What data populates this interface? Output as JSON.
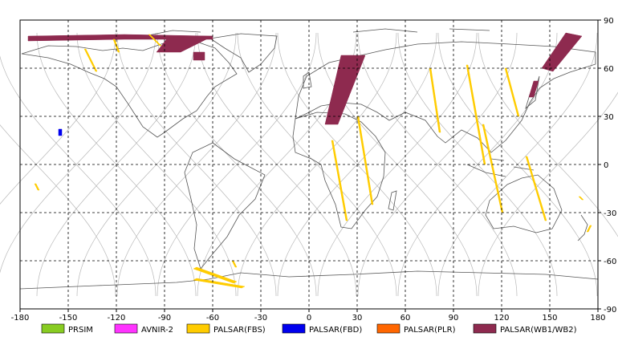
{
  "map": {
    "type": "coverage-map",
    "projection": "equirectangular",
    "xlim": [
      -180,
      180
    ],
    "ylim": [
      -90,
      90
    ],
    "grid": true,
    "x_ticks": [
      {
        "value": -180,
        "label": "-180"
      },
      {
        "value": -150,
        "label": "-150"
      },
      {
        "value": -120,
        "label": "-120"
      },
      {
        "value": -90,
        "label": "-90"
      },
      {
        "value": -60,
        "label": "-60"
      },
      {
        "value": -30,
        "label": "-30"
      },
      {
        "value": 0,
        "label": "0"
      },
      {
        "value": 30,
        "label": "30"
      },
      {
        "value": 60,
        "label": "60"
      },
      {
        "value": 90,
        "label": "90"
      },
      {
        "value": 120,
        "label": "120"
      },
      {
        "value": 150,
        "label": "150"
      },
      {
        "value": 180,
        "label": "180"
      }
    ],
    "y_ticks": [
      {
        "value": 90,
        "label": "90"
      },
      {
        "value": 60,
        "label": "60"
      },
      {
        "value": 30,
        "label": "30"
      },
      {
        "value": 0,
        "label": "0"
      },
      {
        "value": -30,
        "label": "-30"
      },
      {
        "value": -60,
        "label": "-60"
      },
      {
        "value": -90,
        "label": "-90"
      }
    ],
    "orbit_phases_deg": [
      -170,
      -145,
      -120,
      -95,
      -70,
      -45,
      -20,
      5,
      30,
      55,
      80,
      105,
      130,
      155
    ],
    "colors": {
      "grid": "#000000",
      "coast": "#555555",
      "orbit": "#b8b8b8"
    }
  },
  "legend": [
    {
      "label": "PRSIM",
      "color": "#88cc22"
    },
    {
      "label": "AVNIR-2",
      "color": "#ff33ff"
    },
    {
      "label": "PALSAR(FBS)",
      "color": "#ffcc00"
    },
    {
      "label": "PALSAR(FBD)",
      "color": "#0000ee"
    },
    {
      "label": "PALSAR(PLR)",
      "color": "#ff6600"
    },
    {
      "label": "PALSAR(WB1/WB2)",
      "color": "#8e2a4f"
    }
  ],
  "swaths": [
    {
      "mode": "PALSAR(WB1/WB2)",
      "points": [
        [
          -175,
          80
        ],
        [
          -115,
          81
        ],
        [
          -60,
          80
        ],
        [
          -60,
          78
        ],
        [
          -115,
          78
        ],
        [
          -175,
          77
        ]
      ]
    },
    {
      "mode": "PALSAR(WB1/WB2)",
      "points": [
        [
          -88,
          79
        ],
        [
          -60,
          80
        ],
        [
          -80,
          70
        ],
        [
          -95,
          70
        ]
      ]
    },
    {
      "mode": "PALSAR(WB1/WB2)",
      "points": [
        [
          -72,
          70
        ],
        [
          -65,
          70
        ],
        [
          -65,
          65
        ],
        [
          -72,
          65
        ]
      ]
    },
    {
      "mode": "PALSAR(WB1/WB2)",
      "points": [
        [
          35,
          68
        ],
        [
          20,
          68
        ],
        [
          10,
          25
        ],
        [
          18,
          25
        ]
      ]
    },
    {
      "mode": "PALSAR(WB1/WB2)",
      "points": [
        [
          170,
          80
        ],
        [
          160,
          82
        ],
        [
          145,
          60
        ],
        [
          152,
          58
        ]
      ]
    },
    {
      "mode": "PALSAR(WB1/WB2)",
      "points": [
        [
          140,
          52
        ],
        [
          143,
          52
        ],
        [
          140,
          42
        ],
        [
          137,
          42
        ]
      ]
    },
    {
      "mode": "PALSAR(FBS)",
      "points": [
        [
          -140,
          72
        ],
        [
          -139,
          72
        ],
        [
          -132,
          58
        ],
        [
          -133,
          58
        ]
      ]
    },
    {
      "mode": "PALSAR(FBS)",
      "points": [
        [
          -122,
          78
        ],
        [
          -121,
          78
        ],
        [
          -118,
          70
        ],
        [
          -119,
          70
        ]
      ]
    },
    {
      "mode": "PALSAR(FBS)",
      "points": [
        [
          -100,
          81
        ],
        [
          -99,
          81
        ],
        [
          -92,
          74
        ],
        [
          -93,
          74
        ]
      ]
    },
    {
      "mode": "PALSAR(FBS)",
      "points": [
        [
          14,
          15
        ],
        [
          15,
          15
        ],
        [
          24,
          -35
        ],
        [
          23,
          -35
        ]
      ]
    },
    {
      "mode": "PALSAR(FBS)",
      "points": [
        [
          30,
          30
        ],
        [
          31,
          30
        ],
        [
          40,
          -25
        ],
        [
          39,
          -25
        ]
      ]
    },
    {
      "mode": "PALSAR(FBS)",
      "points": [
        [
          75,
          60
        ],
        [
          76,
          60
        ],
        [
          82,
          20
        ],
        [
          81,
          20
        ]
      ]
    },
    {
      "mode": "PALSAR(FBS)",
      "points": [
        [
          98,
          62
        ],
        [
          99,
          62
        ],
        [
          110,
          0
        ],
        [
          109,
          0
        ]
      ]
    },
    {
      "mode": "PALSAR(FBS)",
      "points": [
        [
          122,
          60
        ],
        [
          123,
          60
        ],
        [
          131,
          30
        ],
        [
          130,
          30
        ]
      ]
    },
    {
      "mode": "PALSAR(FBS)",
      "points": [
        [
          108,
          25
        ],
        [
          109,
          25
        ],
        [
          121,
          -30
        ],
        [
          120,
          -30
        ]
      ]
    },
    {
      "mode": "PALSAR(FBS)",
      "points": [
        [
          135,
          5
        ],
        [
          136,
          5
        ],
        [
          148,
          -35
        ],
        [
          147,
          -35
        ]
      ]
    },
    {
      "mode": "PALSAR(FBS)",
      "points": [
        [
          -171,
          -12
        ],
        [
          -170,
          -12
        ],
        [
          -168,
          -16
        ],
        [
          -169,
          -16
        ]
      ]
    },
    {
      "mode": "PALSAR(FBS)",
      "points": [
        [
          168,
          -20
        ],
        [
          169,
          -20
        ],
        [
          171,
          -22
        ],
        [
          170,
          -22
        ]
      ]
    },
    {
      "mode": "PALSAR(FBS)",
      "points": [
        [
          175,
          -38
        ],
        [
          176,
          -38
        ],
        [
          174,
          -42
        ],
        [
          173,
          -42
        ]
      ]
    },
    {
      "mode": "PALSAR(FBS)",
      "points": [
        [
          -48,
          -60
        ],
        [
          -47,
          -60
        ],
        [
          -45,
          -64
        ],
        [
          -46,
          -64
        ]
      ]
    },
    {
      "mode": "PALSAR(FBS)",
      "points": [
        [
          -72,
          -65
        ],
        [
          -70,
          -64
        ],
        [
          -45,
          -73
        ],
        [
          -47,
          -74
        ]
      ]
    },
    {
      "mode": "PALSAR(FBS)",
      "points": [
        [
          -72,
          -72
        ],
        [
          -70,
          -71
        ],
        [
          -40,
          -76
        ],
        [
          -42,
          -77
        ]
      ]
    },
    {
      "mode": "PALSAR(FBD)",
      "points": [
        [
          -156,
          22
        ],
        [
          -154,
          22
        ],
        [
          -154,
          18
        ],
        [
          -156,
          18
        ]
      ]
    }
  ]
}
